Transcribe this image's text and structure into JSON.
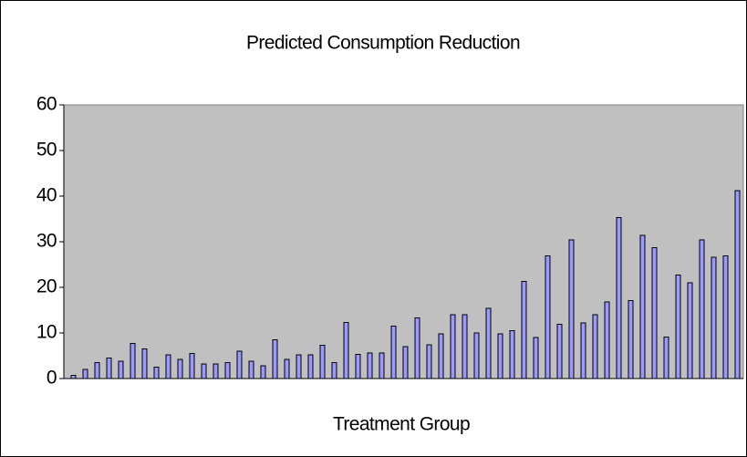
{
  "chart_data": {
    "type": "bar",
    "title": "Predicted Consumption Reduction",
    "x_label": "Treatment Group",
    "categories": [
      null,
      null,
      null,
      null,
      null,
      null,
      null,
      null,
      null,
      null,
      null,
      null,
      null,
      null,
      null,
      null,
      null,
      null,
      null,
      null,
      null,
      null,
      null,
      null,
      null,
      null,
      null,
      null,
      null,
      null,
      null,
      null,
      null,
      null,
      null,
      null,
      null,
      null,
      null,
      null,
      null,
      null,
      null,
      null,
      null,
      null,
      null,
      null,
      null,
      null,
      null,
      null,
      null,
      null,
      null,
      null,
      null
    ],
    "values": [
      0.7,
      2,
      3.5,
      4.5,
      3.8,
      7.7,
      6.5,
      2.5,
      5.2,
      4.2,
      5.5,
      3.2,
      3.2,
      3.5,
      6,
      3.8,
      2.8,
      8.5,
      4.2,
      5.2,
      5.2,
      7.3,
      3.5,
      12.3,
      5.3,
      5.6,
      5.6,
      11.5,
      7,
      13.3,
      7.4,
      9.8,
      14,
      14,
      10,
      15.4,
      9.8,
      10.5,
      21.3,
      9,
      26.9,
      11.9,
      30.4,
      12.2,
      14,
      16.8,
      35.3,
      17.1,
      31.4,
      28.7,
      9.1,
      22.7,
      21,
      30.4,
      26.6,
      26.9,
      41.2
    ],
    "color": "#9999ff",
    "plot_background": "#c0c0c0",
    "ylim": [
      0,
      60
    ],
    "yticks": [
      0,
      10,
      20,
      30,
      40,
      50,
      60
    ],
    "grid": false
  }
}
